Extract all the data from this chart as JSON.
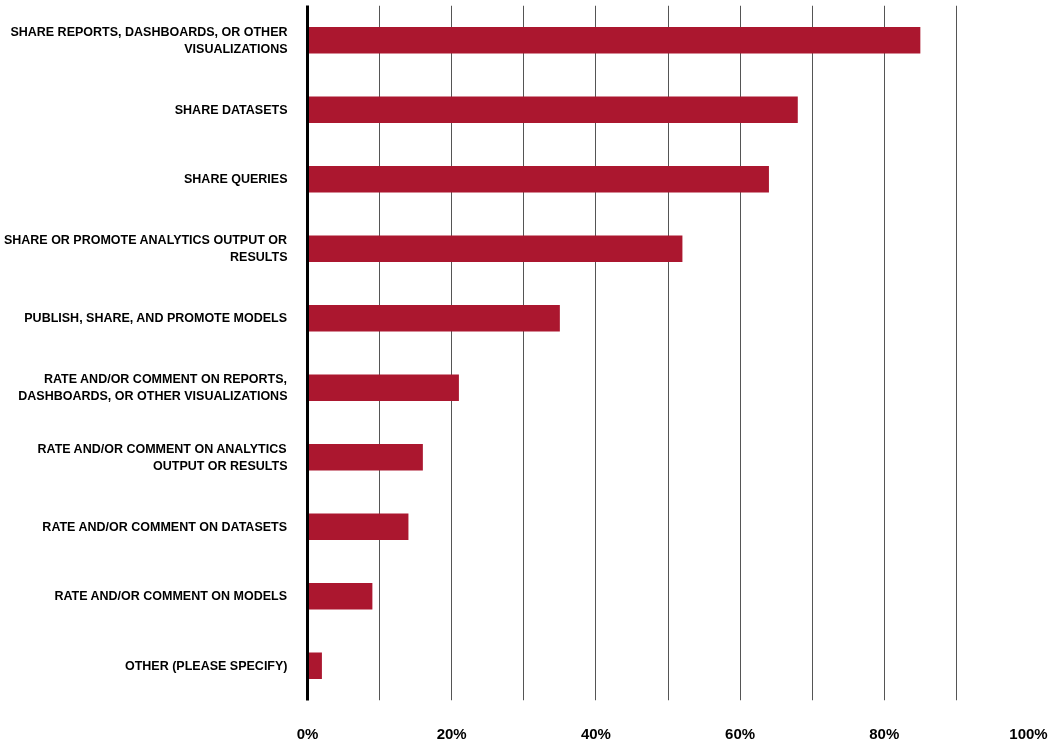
{
  "chart_data": {
    "type": "bar",
    "orientation": "horizontal",
    "categories": [
      "SHARE REPORTS, DASHBOARDS, OR OTHER VISUALIZATIONS",
      "SHARE DATASETS",
      "SHARE QUERIES",
      "SHARE OR PROMOTE ANALYTICS OUTPUT OR RESULTS",
      "PUBLISH, SHARE, AND PROMOTE MODELS",
      "RATE AND/OR COMMENT ON REPORTS, DASHBOARDS, OR OTHER VISUALIZATIONS",
      "RATE AND/OR COMMENT ON ANALYTICS OUTPUT OR RESULTS",
      "RATE AND/OR COMMENT ON DATASETS",
      "RATE AND/OR COMMENT ON MODELS",
      "OTHER (PLEASE SPECIFY)"
    ],
    "values": [
      85,
      68,
      64,
      52,
      35,
      21,
      16,
      14,
      9,
      2
    ],
    "color": "#ab172f",
    "xlim": [
      0,
      100
    ],
    "xticks": [
      {
        "value": 0,
        "label": "0%"
      },
      {
        "value": 10,
        "label": null
      },
      {
        "value": 20,
        "label": "20%"
      },
      {
        "value": 30,
        "label": null
      },
      {
        "value": 40,
        "label": "40%"
      },
      {
        "value": 50,
        "label": null
      },
      {
        "value": 60,
        "label": "60%"
      },
      {
        "value": 70,
        "label": null
      },
      {
        "value": 80,
        "label": "80%"
      },
      {
        "value": 90,
        "label": null
      },
      {
        "value": 100,
        "label": "100%"
      }
    ],
    "grid": "x"
  }
}
